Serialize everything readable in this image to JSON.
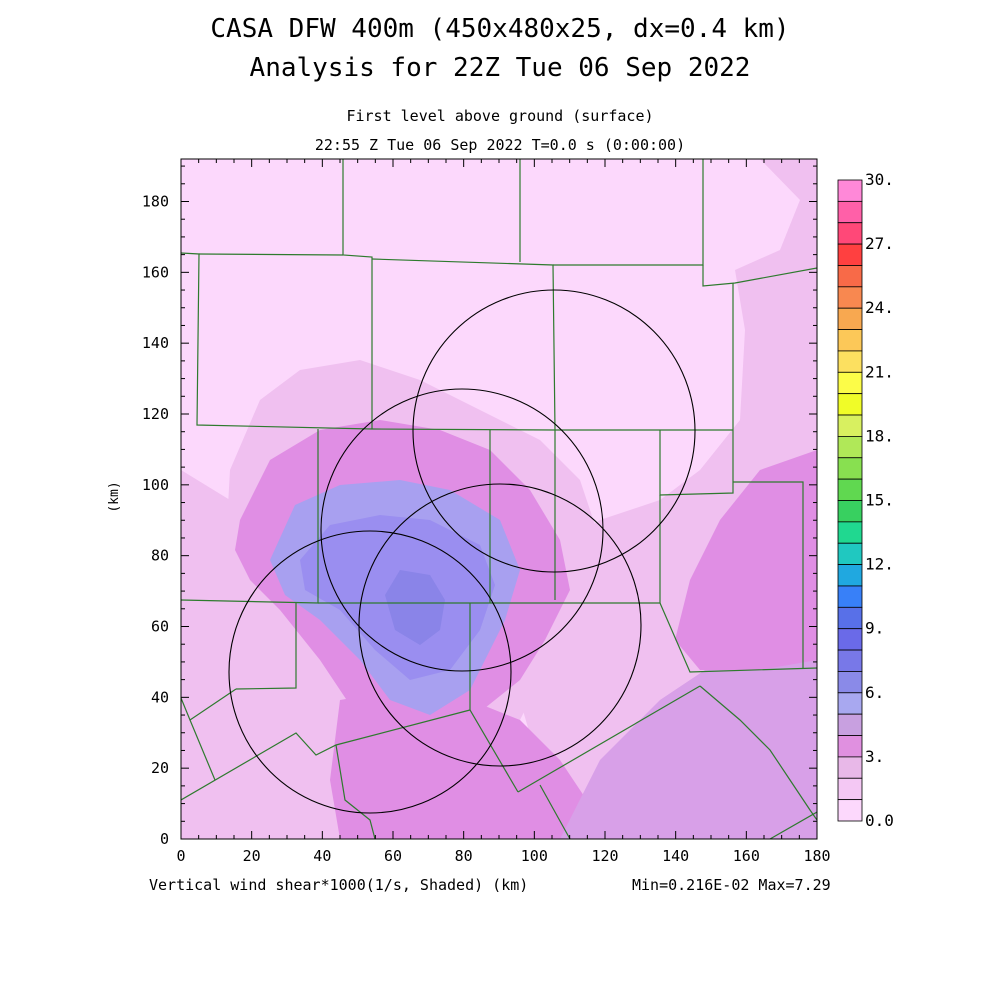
{
  "header": {
    "title_line1": "CASA DFW 400m (450x480x25, dx=0.4 km)",
    "title_line2": "Analysis for 22Z Tue 06 Sep 2022",
    "subtitle": "First level above ground (surface)",
    "time_line": "22:55 Z Tue 06 Sep 2022   T=0.0 s (0:00:00)"
  },
  "footer": {
    "field_label": "Vertical wind shear*1000(1/s, Shaded)  (km)",
    "min_max": "Min=0.216E-02 Max=7.29"
  },
  "axes": {
    "x_ticks": [
      "0",
      "20",
      "40",
      "60",
      "80",
      "100",
      "120",
      "140",
      "160",
      "180"
    ],
    "y_ticks": [
      "0",
      "20",
      "40",
      "60",
      "80",
      "100",
      "120",
      "140",
      "160",
      "180"
    ],
    "y_label": "(km)",
    "x_range": [
      0,
      180
    ],
    "y_range": [
      0,
      192
    ]
  },
  "colorbar": {
    "labels": [
      "30.",
      "27.",
      "24.",
      "21.",
      "18.",
      "15.",
      "12.",
      "9.",
      "6.",
      "3.",
      "0.0"
    ],
    "colors": [
      "#ff88d8",
      "#ff60a8",
      "#ff4878",
      "#ff4040",
      "#f86a48",
      "#f88850",
      "#f8a850",
      "#fcc858",
      "#fce060",
      "#fcfc48",
      "#f0fc28",
      "#d8f060",
      "#b0e858",
      "#88e050",
      "#60d850",
      "#38d060",
      "#20d890",
      "#20c8c0",
      "#20a8e0",
      "#3880f8",
      "#5870e8",
      "#6a6ae8",
      "#7878e8",
      "#8a8ae8",
      "#a8a8f0",
      "#c8a0e0",
      "#e090e0",
      "#e8b8e8",
      "#f4c8f4",
      "#fcd8fc"
    ],
    "min": 0.0,
    "max": 30.0
  },
  "map_colors": {
    "level1": "#fcd8fc",
    "level2": "#f0c0f0",
    "level3": "#e08ee4",
    "level4": "#d8a0e8",
    "level5": "#a8a0f0",
    "level6": "#9a8ef0",
    "level7": "#8a84e8",
    "county_line": "#2e7a2e"
  },
  "radars": {
    "count": 4,
    "ring_color": "#000000"
  }
}
